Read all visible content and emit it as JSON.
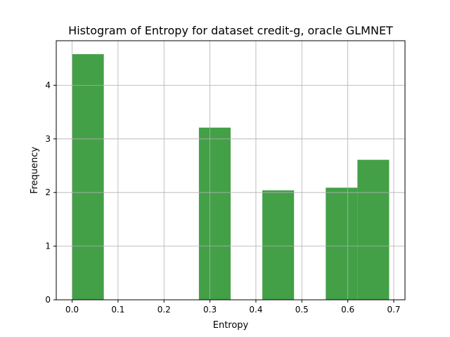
{
  "chart_data": {
    "type": "bar",
    "title": "Histogram of Entropy for dataset credit-g, oracle GLMNET",
    "xlabel": "Entropy",
    "ylabel": "Frequency",
    "xlim": [
      -0.0345,
      0.7245
    ],
    "ylim": [
      0,
      4.83
    ],
    "xticks": [
      0.0,
      0.1,
      0.2,
      0.3,
      0.4,
      0.5,
      0.6,
      0.7
    ],
    "xtick_labels": [
      "0.0",
      "0.1",
      "0.2",
      "0.3",
      "0.4",
      "0.5",
      "0.6",
      "0.7"
    ],
    "yticks": [
      0,
      1,
      2,
      3,
      4
    ],
    "ytick_labels": [
      "0",
      "1",
      "2",
      "3",
      "4"
    ],
    "grid": true,
    "bar_color": "#43a047",
    "bins": [
      {
        "start": 0.0,
        "end": 0.069,
        "value": 4.58
      },
      {
        "start": 0.069,
        "end": 0.138,
        "value": 0
      },
      {
        "start": 0.138,
        "end": 0.207,
        "value": 0
      },
      {
        "start": 0.207,
        "end": 0.276,
        "value": 0
      },
      {
        "start": 0.276,
        "end": 0.345,
        "value": 3.21
      },
      {
        "start": 0.345,
        "end": 0.414,
        "value": 0
      },
      {
        "start": 0.414,
        "end": 0.483,
        "value": 2.04
      },
      {
        "start": 0.483,
        "end": 0.552,
        "value": 0
      },
      {
        "start": 0.552,
        "end": 0.621,
        "value": 2.09
      },
      {
        "start": 0.621,
        "end": 0.69,
        "value": 2.61
      }
    ]
  }
}
